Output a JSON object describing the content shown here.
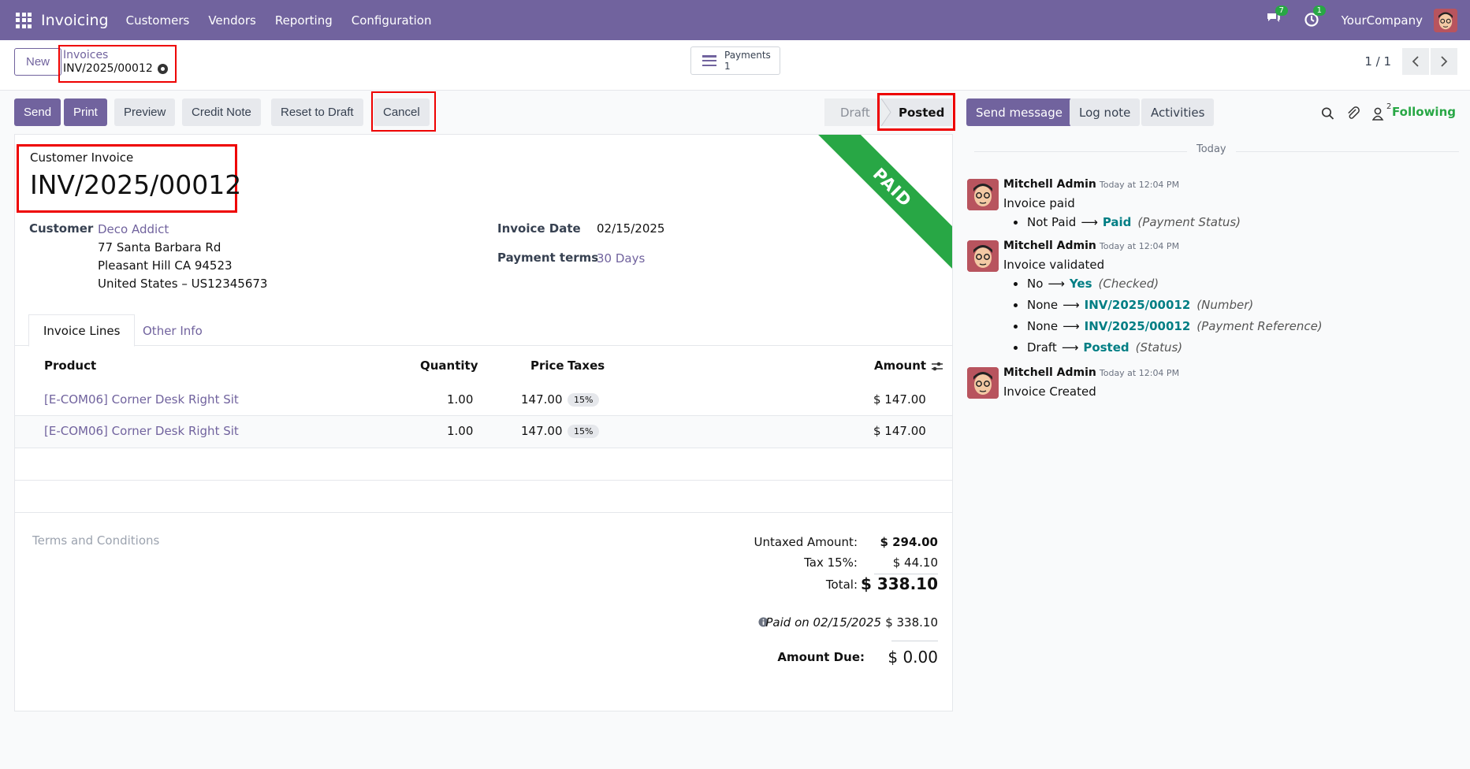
{
  "navbar": {
    "brand": "Invoicing",
    "menu": [
      "Customers",
      "Vendors",
      "Reporting",
      "Configuration"
    ],
    "messages_count": "7",
    "activities_count": "1",
    "company": "YourCompany"
  },
  "control_panel": {
    "new_label": "New",
    "breadcrumb_parent": "Invoices",
    "breadcrumb_current": "INV/2025/00012",
    "smart_button_label": "Payments",
    "smart_button_count": "1",
    "pager_value": "1 / 1"
  },
  "statusbar": {
    "buttons": [
      "Send",
      "Print",
      "Preview",
      "Credit Note",
      "Reset to Draft",
      "Cancel"
    ],
    "stages": [
      "Draft",
      "Posted"
    ]
  },
  "form": {
    "ribbon": "PAID",
    "title_label": "Customer Invoice",
    "title_number": "INV/2025/00012",
    "customer_label": "Customer",
    "customer_name": "Deco Addict",
    "address_line1": "77 Santa Barbara Rd",
    "address_line2": "Pleasant Hill CA 94523",
    "address_line3": "United States – US12345673",
    "invoice_date_label": "Invoice Date",
    "invoice_date": "02/15/2025",
    "payment_terms_label": "Payment terms",
    "payment_terms": "30 Days",
    "tabs": [
      "Invoice Lines",
      "Other Info"
    ],
    "columns": [
      "Product",
      "Quantity",
      "Price",
      "Taxes",
      "Amount"
    ],
    "lines": [
      {
        "product": "[E-COM06] Corner Desk Right Sit",
        "quantity": "1.00",
        "price": "147.00",
        "tax": "15%",
        "amount": "$ 147.00"
      },
      {
        "product": "[E-COM06] Corner Desk Right Sit",
        "quantity": "1.00",
        "price": "147.00",
        "tax": "15%",
        "amount": "$ 147.00"
      }
    ],
    "terms_placeholder": "Terms and Conditions",
    "untaxed_label": "Untaxed Amount:",
    "untaxed_value": "$ 294.00",
    "tax_label": "Tax 15%:",
    "tax_value": "$ 44.10",
    "total_label": "Total:",
    "total_value": "$ 338.10",
    "paid_on": "Paid on 02/15/2025",
    "paid_value": "$ 338.10",
    "amount_due_label": "Amount Due:",
    "amount_due_value": "$ 0.00"
  },
  "chatter": {
    "buttons": [
      "Send message",
      "Log note",
      "Activities"
    ],
    "followers_count": "2",
    "following_label": "Following",
    "date_separator": "Today",
    "messages": [
      {
        "author": "Mitchell Admin",
        "time": "Today at 12:04 PM",
        "body": "Invoice paid",
        "tracking": [
          {
            "old": "Not Paid",
            "new": "Paid",
            "field": "(Payment Status)"
          }
        ]
      },
      {
        "author": "Mitchell Admin",
        "time": "Today at 12:04 PM",
        "body": "Invoice validated",
        "tracking": [
          {
            "old": "No",
            "new": "Yes",
            "field": "(Checked)"
          },
          {
            "old": "None",
            "new": "INV/2025/00012",
            "field": "(Number)"
          },
          {
            "old": "None",
            "new": "INV/2025/00012",
            "field": "(Payment Reference)"
          },
          {
            "old": "Draft",
            "new": "Posted",
            "field": "(Status)"
          }
        ]
      },
      {
        "author": "Mitchell Admin",
        "time": "Today at 12:04 PM",
        "body": "Invoice Created",
        "tracking": []
      }
    ]
  }
}
